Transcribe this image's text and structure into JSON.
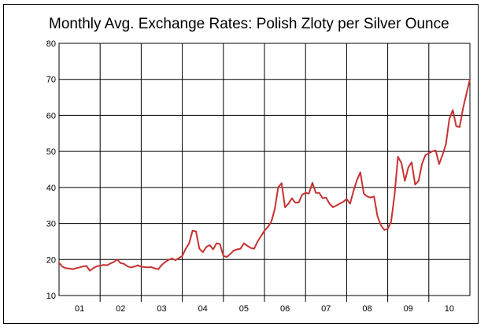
{
  "chart_data": {
    "type": "line",
    "title": "Monthly Avg. Exchange Rates: Polish Zloty per Silver Ounce",
    "xlabel": "",
    "ylabel": "",
    "ylim": [
      10,
      80
    ],
    "yticks": [
      10,
      20,
      30,
      40,
      50,
      60,
      70,
      80
    ],
    "xticks": [
      "01",
      "02",
      "03",
      "04",
      "05",
      "06",
      "07",
      "08",
      "09",
      "10"
    ],
    "grid": true,
    "legend": "none",
    "x_start": "2001-01",
    "series": [
      {
        "color": "#c83232",
        "values": [
          19.1,
          18.0,
          17.6,
          17.5,
          17.3,
          17.6,
          17.8,
          18.1,
          18.2,
          16.9,
          17.6,
          18.1,
          18.3,
          18.5,
          18.4,
          18.9,
          19.3,
          20.0,
          19.0,
          18.8,
          18.1,
          17.8,
          18.0,
          18.4,
          18.0,
          17.9,
          17.8,
          17.9,
          17.5,
          17.3,
          18.5,
          19.3,
          19.9,
          20.3,
          19.8,
          20.4,
          21.0,
          23.0,
          24.5,
          28.0,
          27.8,
          23.0,
          22.0,
          23.5,
          24.0,
          22.8,
          24.5,
          24.3,
          21.0,
          20.7,
          21.5,
          22.5,
          22.8,
          23.0,
          24.5,
          23.8,
          23.2,
          23.0,
          25.0,
          26.5,
          28.0,
          29.0,
          30.5,
          34.0,
          40.0,
          41.2,
          34.5,
          35.5,
          37.0,
          35.8,
          35.8,
          38.0,
          38.5,
          38.3,
          41.3,
          38.5,
          38.5,
          37.0,
          37.2,
          35.5,
          34.5,
          35.0,
          35.5,
          36.0,
          36.8,
          35.5,
          39.0,
          42.0,
          44.2,
          38.3,
          37.5,
          37.2,
          37.5,
          32.0,
          29.5,
          28.2,
          28.5,
          30.5,
          38.0,
          48.5,
          46.8,
          41.8,
          45.5,
          47.0,
          40.8,
          41.8,
          46.5,
          49.0,
          49.5,
          50.0,
          50.3,
          46.5,
          49.0,
          52.0,
          59.0,
          61.5,
          57.0,
          56.8,
          62.0,
          66.0,
          70.0
        ]
      }
    ]
  }
}
